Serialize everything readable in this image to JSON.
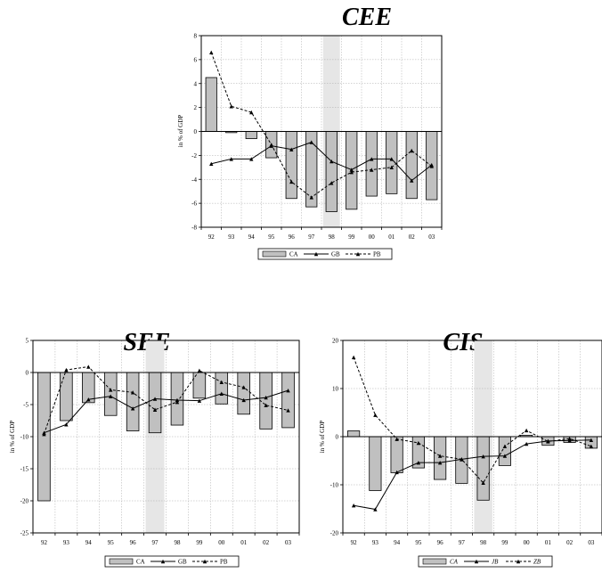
{
  "chart_data": [
    {
      "type": "bar",
      "title": "CEE",
      "ylabel": "in % of GDP",
      "ylim": [
        -8,
        8
      ],
      "yticks": [
        8,
        6,
        4,
        2,
        0,
        -2,
        -4,
        -6,
        -8
      ],
      "categories": [
        "92",
        "93",
        "94",
        "95",
        "96",
        "97",
        "98",
        "99",
        "00",
        "01",
        "02",
        "03"
      ],
      "highlight_category": "98",
      "grid": true,
      "legend_position": "bottom",
      "series": [
        {
          "name": "CA",
          "kind": "bar",
          "color": "#c0c0c0",
          "values": [
            4.5,
            -0.1,
            -0.6,
            -2.2,
            -5.6,
            -6.3,
            -6.7,
            -6.5,
            -5.4,
            -5.2,
            -5.6,
            -5.7
          ]
        },
        {
          "name": "GB",
          "kind": "line",
          "dash": "solid",
          "color": "#000000",
          "values": [
            -2.7,
            -2.3,
            -2.3,
            -1.2,
            -1.5,
            -0.9,
            -2.5,
            -3.2,
            -2.3,
            -2.3,
            -4.1,
            -2.8
          ]
        },
        {
          "name": "PB",
          "kind": "line",
          "dash": "dashed",
          "color": "#000000",
          "values": [
            6.6,
            2.1,
            1.6,
            -1.1,
            -4.2,
            -5.5,
            -4.3,
            -3.4,
            -3.2,
            -3.0,
            -1.6,
            -2.9
          ]
        }
      ]
    },
    {
      "type": "bar",
      "title": "SEE",
      "ylabel": "in % of GDP",
      "ylim": [
        -25,
        5
      ],
      "yticks": [
        5,
        0,
        -5,
        -10,
        -15,
        -20,
        -25
      ],
      "categories": [
        "92",
        "93",
        "94",
        "95",
        "96",
        "97",
        "98",
        "99",
        "00",
        "01",
        "02",
        "03"
      ],
      "highlight_category": "97",
      "grid": true,
      "legend_position": "bottom",
      "series": [
        {
          "name": "CA",
          "kind": "bar",
          "color": "#c0c0c0",
          "values": [
            -20,
            -7.5,
            -4.7,
            -6.7,
            -9.1,
            -9.4,
            -8.2,
            -4.0,
            -4.9,
            -6.5,
            -8.8,
            -8.6
          ]
        },
        {
          "name": "GB",
          "kind": "line",
          "dash": "solid",
          "color": "#000000",
          "values": [
            -9.4,
            -8.1,
            -4.2,
            -3.7,
            -5.6,
            -4.1,
            -4.3,
            -4.4,
            -3.3,
            -4.3,
            -3.9,
            -2.8
          ]
        },
        {
          "name": "PB",
          "kind": "line",
          "dash": "dashed",
          "color": "#000000",
          "values": [
            -9.6,
            0.4,
            0.9,
            -2.7,
            -3.1,
            -5.8,
            -4.6,
            0.3,
            -1.5,
            -2.3,
            -5.1,
            -5.9
          ]
        }
      ]
    },
    {
      "type": "bar",
      "title": "CIS",
      "ylabel": "in % of GDP",
      "ylim": [
        -20,
        20
      ],
      "yticks": [
        20,
        10,
        0,
        -10,
        -20
      ],
      "categories": [
        "92",
        "93",
        "94",
        "95",
        "96",
        "97",
        "98",
        "99",
        "00",
        "01",
        "02",
        "03"
      ],
      "highlight_category": "98",
      "grid": true,
      "legend_position": "bottom",
      "series": [
        {
          "name": "CA",
          "kind": "bar",
          "color": "#c0c0c0",
          "values": [
            1.2,
            -11.2,
            -7.5,
            -6.5,
            -8.9,
            -9.7,
            -13.2,
            -6.0,
            0.3,
            -1.8,
            -1.2,
            -2.4
          ]
        },
        {
          "name": "JB",
          "kind": "line",
          "dash": "solid",
          "color": "#000000",
          "values": [
            -14.3,
            -15.1,
            -7.4,
            -5.4,
            -5.4,
            -4.7,
            -4.1,
            -4.0,
            -1.5,
            -0.9,
            -0.8,
            -0.7
          ]
        },
        {
          "name": "ZB",
          "kind": "line",
          "dash": "dashed",
          "color": "#000000",
          "values": [
            16.5,
            4.5,
            -0.5,
            -1.3,
            -4.0,
            -4.7,
            -9.6,
            -2.0,
            1.3,
            -1.0,
            -0.4,
            -2.0
          ]
        }
      ]
    }
  ]
}
